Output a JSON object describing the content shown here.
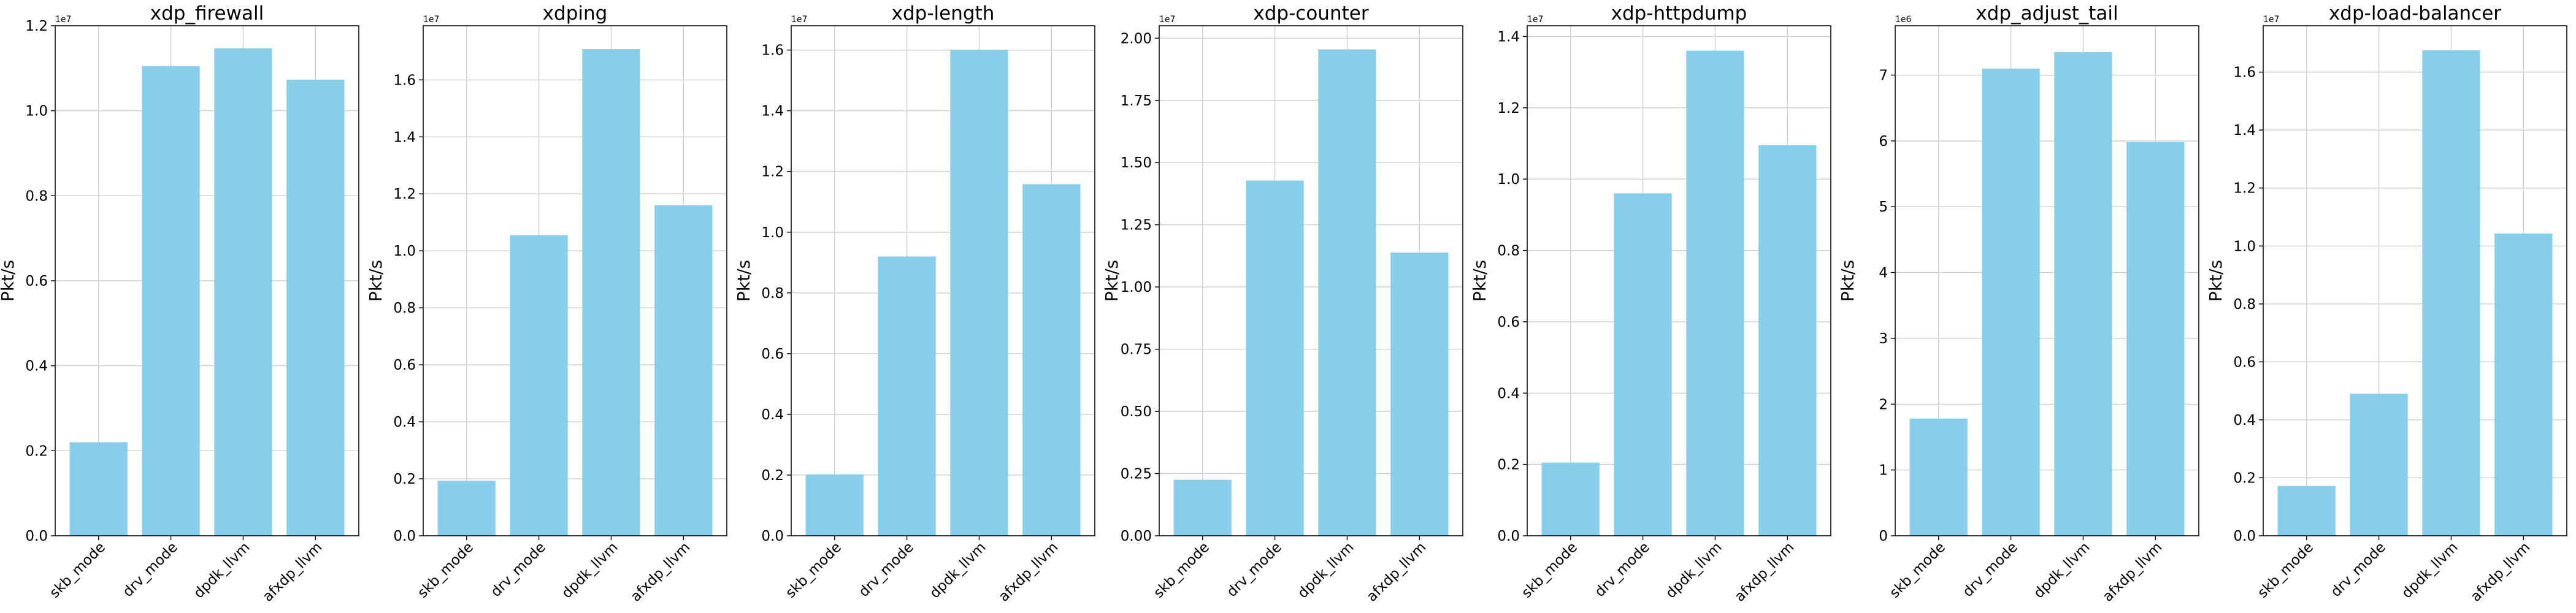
{
  "figure": {
    "bar_color": "#87ceeb",
    "grid": true
  },
  "chart_data": [
    {
      "type": "bar",
      "title": "xdp_firewall",
      "ylabel": "Pkt/s",
      "xlabel": "",
      "exponent_label": "1e7",
      "ylim": [
        0,
        12000000
      ],
      "yticks": [
        0,
        2000000,
        4000000,
        6000000,
        8000000,
        10000000,
        12000000
      ],
      "ytick_labels": [
        "0.0",
        "0.2",
        "0.4",
        "0.6",
        "0.8",
        "1.0",
        "1.2"
      ],
      "categories": [
        "skb_mode",
        "drv_mode",
        "dpdk_llvm",
        "afxdp_llvm"
      ],
      "values": [
        2200000,
        11050000,
        11470000,
        10730000
      ]
    },
    {
      "type": "bar",
      "title": "xdping",
      "ylabel": "Pkt/s",
      "xlabel": "",
      "exponent_label": "1e7",
      "ylim": [
        0,
        17900000
      ],
      "yticks": [
        0,
        2000000,
        4000000,
        6000000,
        8000000,
        10000000,
        12000000,
        14000000,
        16000000
      ],
      "ytick_labels": [
        "0.0",
        "0.2",
        "0.4",
        "0.6",
        "0.8",
        "1.0",
        "1.2",
        "1.4",
        "1.6"
      ],
      "categories": [
        "skb_mode",
        "drv_mode",
        "dpdk_llvm",
        "afxdp_llvm"
      ],
      "values": [
        1930000,
        10550000,
        17080000,
        11600000
      ]
    },
    {
      "type": "bar",
      "title": "xdp-length",
      "ylabel": "Pkt/s",
      "xlabel": "",
      "exponent_label": "1e7",
      "ylim": [
        0,
        16800000
      ],
      "yticks": [
        0,
        2000000,
        4000000,
        6000000,
        8000000,
        10000000,
        12000000,
        14000000,
        16000000
      ],
      "ytick_labels": [
        "0.0",
        "0.2",
        "0.4",
        "0.6",
        "0.8",
        "1.0",
        "1.2",
        "1.4",
        "1.6"
      ],
      "categories": [
        "skb_mode",
        "drv_mode",
        "dpdk_llvm",
        "afxdp_llvm"
      ],
      "values": [
        2020000,
        9200000,
        16000000,
        11580000
      ]
    },
    {
      "type": "bar",
      "title": "xdp-counter",
      "ylabel": "Pkt/s",
      "xlabel": "",
      "exponent_label": "1e7",
      "ylim": [
        0,
        20500000
      ],
      "yticks": [
        0,
        2500000,
        5000000,
        7500000,
        10000000,
        12500000,
        15000000,
        17500000,
        20000000
      ],
      "ytick_labels": [
        "0.00",
        "0.25",
        "0.50",
        "0.75",
        "1.00",
        "1.25",
        "1.50",
        "1.75",
        "2.00"
      ],
      "categories": [
        "skb_mode",
        "drv_mode",
        "dpdk_llvm",
        "afxdp_llvm"
      ],
      "values": [
        2250000,
        14280000,
        19550000,
        11380000
      ]
    },
    {
      "type": "bar",
      "title": "xdp-httpdump",
      "ylabel": "Pkt/s",
      "xlabel": "",
      "exponent_label": "1e7",
      "ylim": [
        0,
        14300000
      ],
      "yticks": [
        0,
        2000000,
        4000000,
        6000000,
        8000000,
        10000000,
        12000000,
        14000000
      ],
      "ytick_labels": [
        "0.0",
        "0.2",
        "0.4",
        "0.6",
        "0.8",
        "1.0",
        "1.2",
        "1.4"
      ],
      "categories": [
        "skb_mode",
        "drv_mode",
        "dpdk_llvm",
        "afxdp_llvm"
      ],
      "values": [
        2050000,
        9600000,
        13600000,
        10950000
      ]
    },
    {
      "type": "bar",
      "title": "xdp_adjust_tail",
      "ylabel": "Pkt/s",
      "xlabel": "",
      "exponent_label": "1e6",
      "ylim": [
        0,
        7750000
      ],
      "yticks": [
        0,
        1000000,
        2000000,
        3000000,
        4000000,
        5000000,
        6000000,
        7000000
      ],
      "ytick_labels": [
        "0",
        "1",
        "2",
        "3",
        "4",
        "5",
        "6",
        "7"
      ],
      "categories": [
        "skb_mode",
        "drv_mode",
        "dpdk_llvm",
        "afxdp_llvm"
      ],
      "values": [
        1780000,
        7100000,
        7350000,
        5980000
      ]
    },
    {
      "type": "bar",
      "title": "xdp-load-balancer",
      "ylabel": "Pkt/s",
      "xlabel": "",
      "exponent_label": "1e7",
      "ylim": [
        0,
        17600000
      ],
      "yticks": [
        0,
        2000000,
        4000000,
        6000000,
        8000000,
        10000000,
        12000000,
        14000000,
        16000000
      ],
      "ytick_labels": [
        "0.0",
        "0.2",
        "0.4",
        "0.6",
        "0.8",
        "1.0",
        "1.2",
        "1.4",
        "1.6"
      ],
      "categories": [
        "skb_mode",
        "drv_mode",
        "dpdk_llvm",
        "afxdp_llvm"
      ],
      "values": [
        1720000,
        4900000,
        16750000,
        10430000
      ]
    }
  ]
}
